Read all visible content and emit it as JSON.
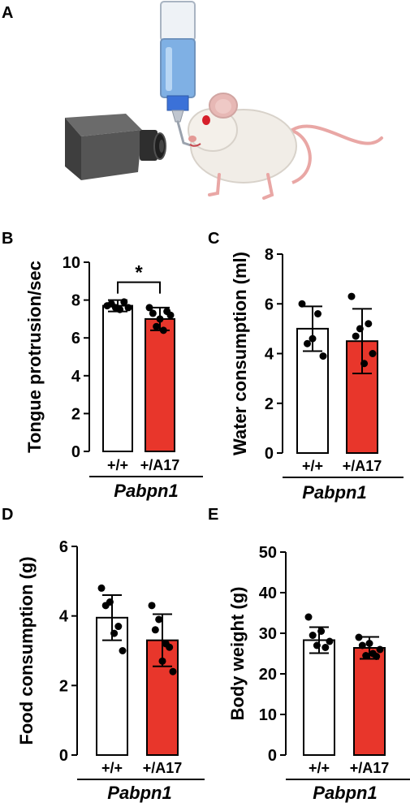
{
  "panel_letters": [
    "A",
    "B",
    "C",
    "D",
    "E"
  ],
  "colors": {
    "wildtype_fill": "#ffffff",
    "mutant_fill": "#e8362b",
    "ink": "#000000"
  },
  "illustration": {
    "icons": [
      "water-bottle-icon",
      "camera-icon",
      "mouse-icon"
    ]
  },
  "chart_data": [
    {
      "panel": "B",
      "type": "bar",
      "ylabel": "Tongue protrusion/sec",
      "ylim": [
        0,
        10
      ],
      "yticks": [
        0,
        2,
        4,
        6,
        8,
        10
      ],
      "categories": [
        "+/+",
        "+/A17"
      ],
      "group_label": "Pabpn1",
      "values": [
        7.7,
        7.0
      ],
      "sd": [
        0.3,
        0.6
      ],
      "points": [
        [
          7.7,
          7.8,
          7.6,
          7.5,
          7.9,
          7.6
        ],
        [
          7.6,
          7.3,
          6.6,
          7.0,
          6.4,
          7.4,
          7.2
        ]
      ],
      "significance": "*"
    },
    {
      "panel": "C",
      "type": "bar",
      "ylabel": "Water consumption (ml)",
      "ylim": [
        0,
        8
      ],
      "yticks": [
        0,
        2,
        4,
        6,
        8
      ],
      "categories": [
        "+/+",
        "+/A17"
      ],
      "group_label": "Pabpn1",
      "values": [
        5.0,
        4.5
      ],
      "sd": [
        0.9,
        1.3
      ],
      "points": [
        [
          6.0,
          4.4,
          4.6,
          5.6,
          3.9
        ],
        [
          6.3,
          4.7,
          5.0,
          3.6,
          5.2,
          4.0
        ]
      ]
    },
    {
      "panel": "D",
      "type": "bar",
      "ylabel": "Food consumption (g)",
      "ylim": [
        0,
        6
      ],
      "yticks": [
        0,
        2,
        4,
        6
      ],
      "categories": [
        "+/+",
        "+/A17"
      ],
      "group_label": "Pabpn1",
      "values": [
        3.95,
        3.3
      ],
      "sd": [
        0.65,
        0.75
      ],
      "points": [
        [
          4.8,
          4.3,
          4.4,
          3.5,
          3.7,
          3.0
        ],
        [
          4.3,
          3.6,
          3.9,
          2.7,
          3.2,
          3.1,
          2.4
        ]
      ]
    },
    {
      "panel": "E",
      "type": "bar",
      "ylabel": "Body weight (g)",
      "ylim": [
        0,
        50
      ],
      "yticks": [
        0,
        10,
        20,
        30,
        40,
        50
      ],
      "categories": [
        "+/+",
        "+/A17"
      ],
      "group_label": "Pabpn1",
      "values": [
        28.3,
        26.4
      ],
      "sd": [
        3.2,
        2.7
      ],
      "points": [
        [
          34.0,
          29.5,
          27.0,
          30.5,
          26.5,
          28.0
        ],
        [
          29.0,
          27.0,
          24.5,
          27.5,
          25.0,
          24.3,
          26.0
        ]
      ]
    }
  ]
}
